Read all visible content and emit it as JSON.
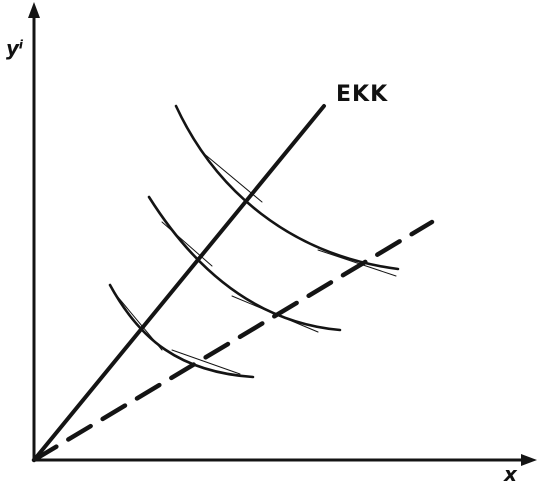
{
  "labels": {
    "y_axis": "yⁱ",
    "x_axis": "x",
    "ray": "EKK"
  },
  "colors": {
    "ink": "#141414",
    "paper": "#ffffff"
  }
}
